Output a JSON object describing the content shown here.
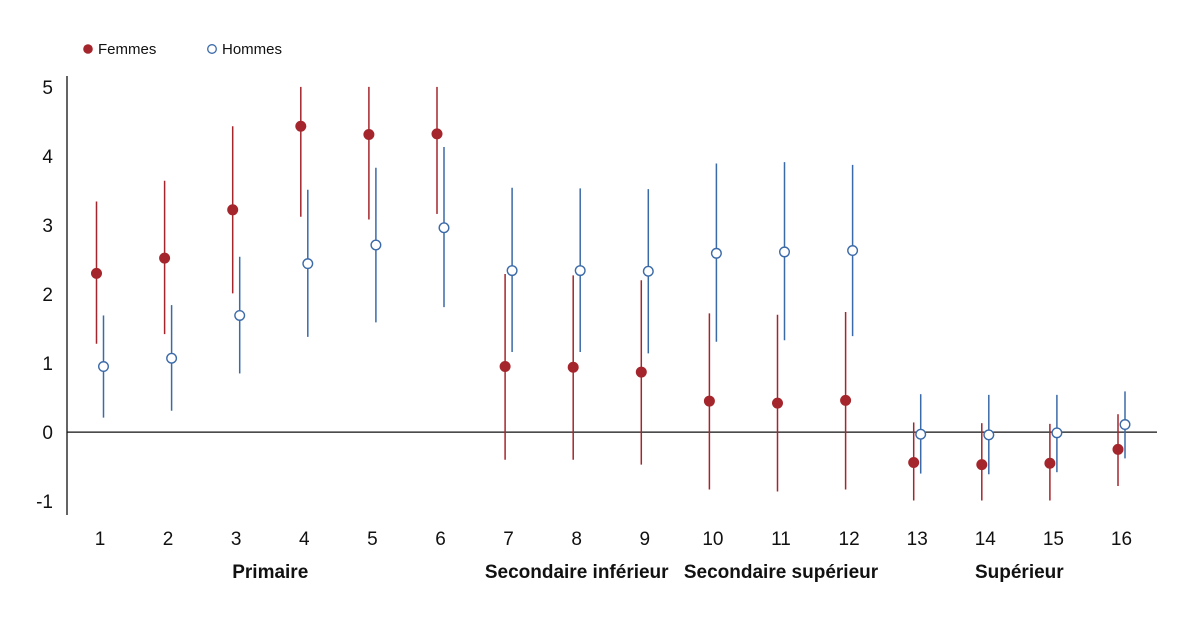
{
  "chart_data": {
    "type": "scatter",
    "title": "",
    "xlabel": "",
    "ylabel": "",
    "ylim": [
      -1.2,
      5.1
    ],
    "yticks": [
      -1,
      0,
      1,
      2,
      3,
      4,
      5
    ],
    "x": [
      1,
      2,
      3,
      4,
      5,
      6,
      7,
      8,
      9,
      10,
      11,
      12,
      13,
      14,
      15,
      16
    ],
    "x_tick_labels": [
      "1",
      "2",
      "3",
      "4",
      "5",
      "6",
      "7",
      "8",
      "9",
      "10",
      "11",
      "12",
      "13",
      "14",
      "15",
      "16"
    ],
    "groups": [
      {
        "label": "Primaire",
        "from": 1,
        "to": 6
      },
      {
        "label": "Secondaire inférieur",
        "from": 7,
        "to": 9
      },
      {
        "label": "Secondaire supérieur",
        "from": 10,
        "to": 12
      },
      {
        "label": "Supérieur",
        "from": 13,
        "to": 16
      }
    ],
    "legend_position": "top-left",
    "grid": false,
    "series": [
      {
        "name": "Femmes",
        "color": "#a4262c",
        "marker": "filled-circle",
        "values": [
          2.3,
          2.52,
          3.22,
          4.43,
          4.31,
          4.32,
          0.95,
          0.94,
          0.87,
          0.45,
          0.42,
          0.46,
          -0.44,
          -0.47,
          -0.45,
          -0.25
        ],
        "lower": [
          1.28,
          1.42,
          2.01,
          3.12,
          3.08,
          3.16,
          -0.4,
          -0.4,
          -0.47,
          -0.83,
          -0.86,
          -0.83,
          -0.99,
          -0.99,
          -0.99,
          -0.78
        ],
        "upper": [
          3.34,
          3.64,
          4.43,
          5.0,
          5.0,
          5.0,
          2.29,
          2.27,
          2.2,
          1.72,
          1.7,
          1.74,
          0.14,
          0.13,
          0.12,
          0.26
        ]
      },
      {
        "name": "Hommes",
        "color": "#3b6aa8",
        "marker": "open-circle",
        "values": [
          0.95,
          1.07,
          1.69,
          2.44,
          2.71,
          2.96,
          2.34,
          2.34,
          2.33,
          2.59,
          2.61,
          2.63,
          -0.03,
          -0.04,
          -0.01,
          0.11
        ],
        "lower": [
          0.21,
          0.31,
          0.85,
          1.38,
          1.59,
          1.81,
          1.16,
          1.16,
          1.14,
          1.31,
          1.33,
          1.39,
          -0.6,
          -0.61,
          -0.58,
          -0.38
        ],
        "upper": [
          1.69,
          1.84,
          2.54,
          3.51,
          3.83,
          4.13,
          3.54,
          3.53,
          3.52,
          3.89,
          3.91,
          3.87,
          0.55,
          0.54,
          0.54,
          0.59
        ]
      }
    ]
  }
}
